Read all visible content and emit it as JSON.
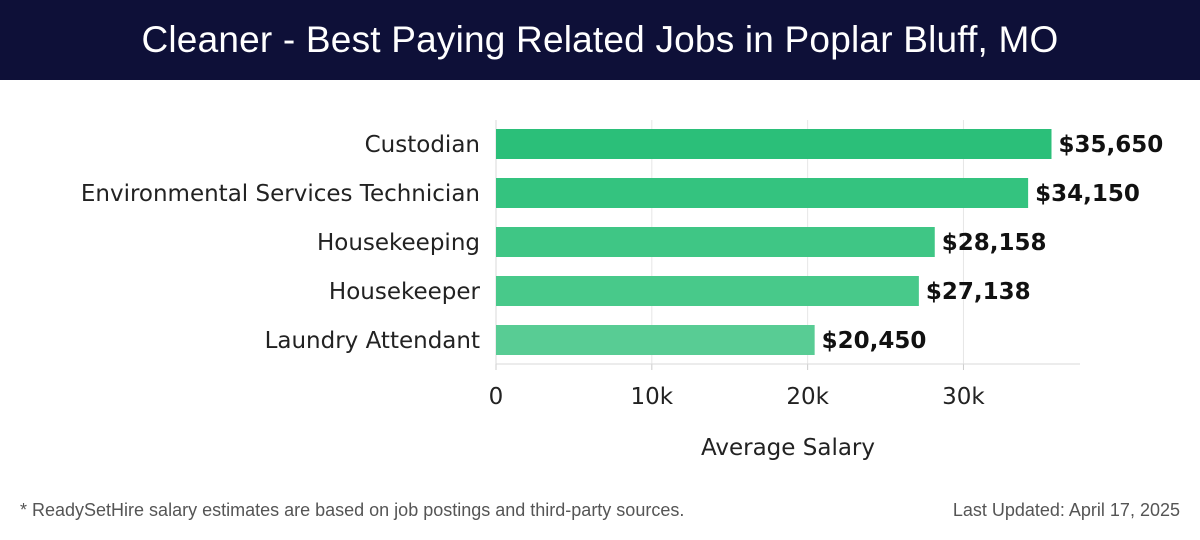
{
  "title": "Cleaner - Best Paying Related Jobs in Poplar Bluff, MO",
  "footnote": "* ReadySetHire salary estimates are based on job postings and third-party sources.",
  "last_updated": "Last Updated: April 17, 2025",
  "colors": {
    "header_bg": "#0e1038",
    "bar_colors": [
      "#2bbf79",
      "#34c37f",
      "#3fc685",
      "#48c98a",
      "#58cc94"
    ]
  },
  "chart_data": {
    "type": "bar",
    "orientation": "horizontal",
    "title": "Cleaner - Best Paying Related Jobs in Poplar Bluff, MO",
    "categories": [
      "Custodian",
      "Environmental Services Technician",
      "Housekeeping",
      "Housekeeper",
      "Laundry Attendant"
    ],
    "values": [
      35650,
      34150,
      28158,
      27138,
      20450
    ],
    "value_labels": [
      "$35,650",
      "$34,150",
      "$28,158",
      "$27,138",
      "$20,450"
    ],
    "xlabel": "Average Salary",
    "ylabel": "",
    "xlim": [
      0,
      37500
    ],
    "xticks": [
      0,
      10000,
      20000,
      30000
    ],
    "xtick_labels": [
      "0",
      "10k",
      "20k",
      "30k"
    ],
    "grid": true
  }
}
